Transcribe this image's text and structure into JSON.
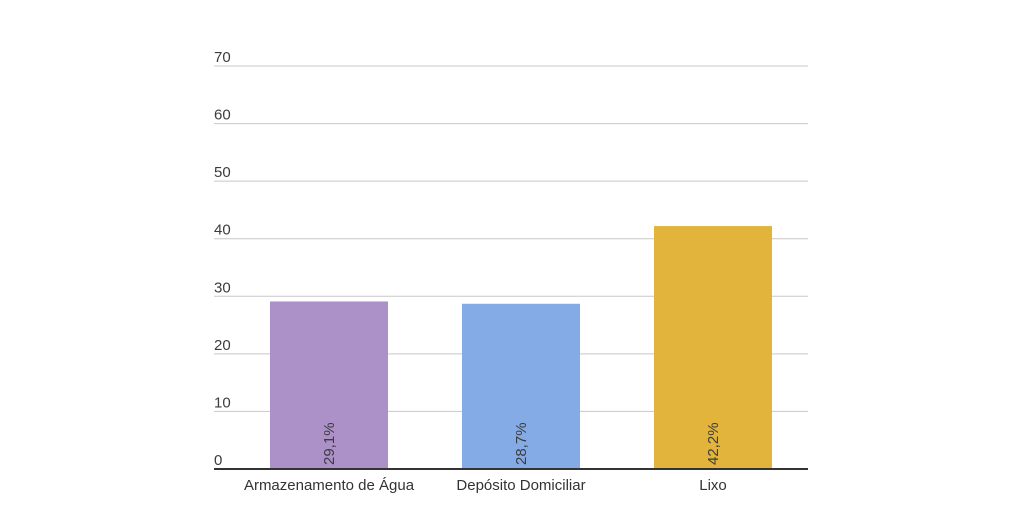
{
  "chart_data": {
    "type": "bar",
    "categories": [
      "Armazenamento de Água",
      "Depósito Domiciliar",
      "Lixo"
    ],
    "values": [
      29.1,
      28.7,
      42.2
    ],
    "data_labels": [
      "29,1%",
      "28,7%",
      "42,2%"
    ],
    "colors": [
      "#ab91c8",
      "#84abe6",
      "#e2b43b"
    ],
    "ylim": [
      0,
      70
    ],
    "yticks": [
      0,
      10,
      20,
      30,
      40,
      50,
      60,
      70
    ],
    "grid": true,
    "gridline_color": "#c8c8c8",
    "axis_color": "#333333",
    "title": "",
    "xlabel": "",
    "ylabel": ""
  }
}
